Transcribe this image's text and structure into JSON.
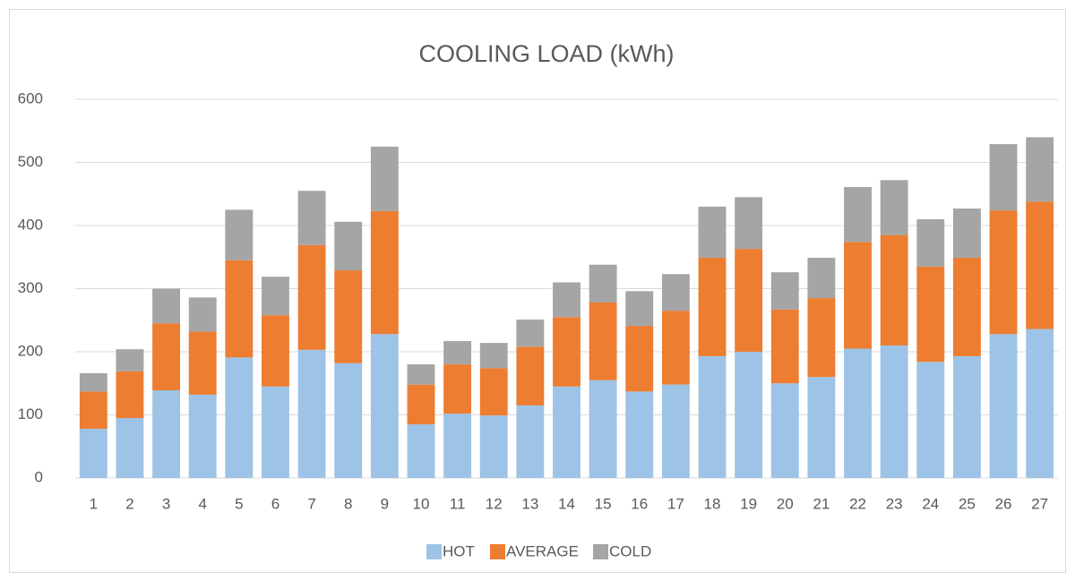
{
  "chart_data": {
    "type": "stacked_bar",
    "title": "COOLING LOAD (kWh)",
    "categories": [
      "1",
      "2",
      "3",
      "4",
      "5",
      "6",
      "7",
      "8",
      "9",
      "10",
      "11",
      "12",
      "13",
      "14",
      "15",
      "16",
      "17",
      "18",
      "19",
      "20",
      "21",
      "22",
      "23",
      "24",
      "25",
      "26",
      "27"
    ],
    "series": [
      {
        "name": "HOT",
        "color": "#9dc3e6",
        "values": [
          78,
          95,
          139,
          132,
          191,
          145,
          203,
          182,
          228,
          85,
          102,
          99,
          115,
          145,
          155,
          137,
          148,
          193,
          200,
          150,
          160,
          205,
          210,
          184,
          193,
          228,
          236
        ]
      },
      {
        "name": "AVERAGE",
        "color": "#ed7d31",
        "values": [
          59,
          74,
          106,
          100,
          154,
          113,
          166,
          147,
          195,
          63,
          78,
          75,
          93,
          110,
          123,
          104,
          117,
          156,
          163,
          117,
          125,
          169,
          175,
          151,
          156,
          196,
          202
        ]
      },
      {
        "name": "COLD",
        "color": "#a5a5a5",
        "values": [
          29,
          35,
          55,
          54,
          80,
          61,
          86,
          77,
          102,
          32,
          37,
          40,
          43,
          55,
          60,
          55,
          58,
          81,
          82,
          59,
          64,
          87,
          87,
          75,
          78,
          105,
          102
        ]
      }
    ],
    "ylim": [
      0,
      600
    ],
    "yticks": [
      0,
      100,
      200,
      300,
      400,
      500,
      600
    ],
    "grid": true,
    "legend": "bottom"
  }
}
